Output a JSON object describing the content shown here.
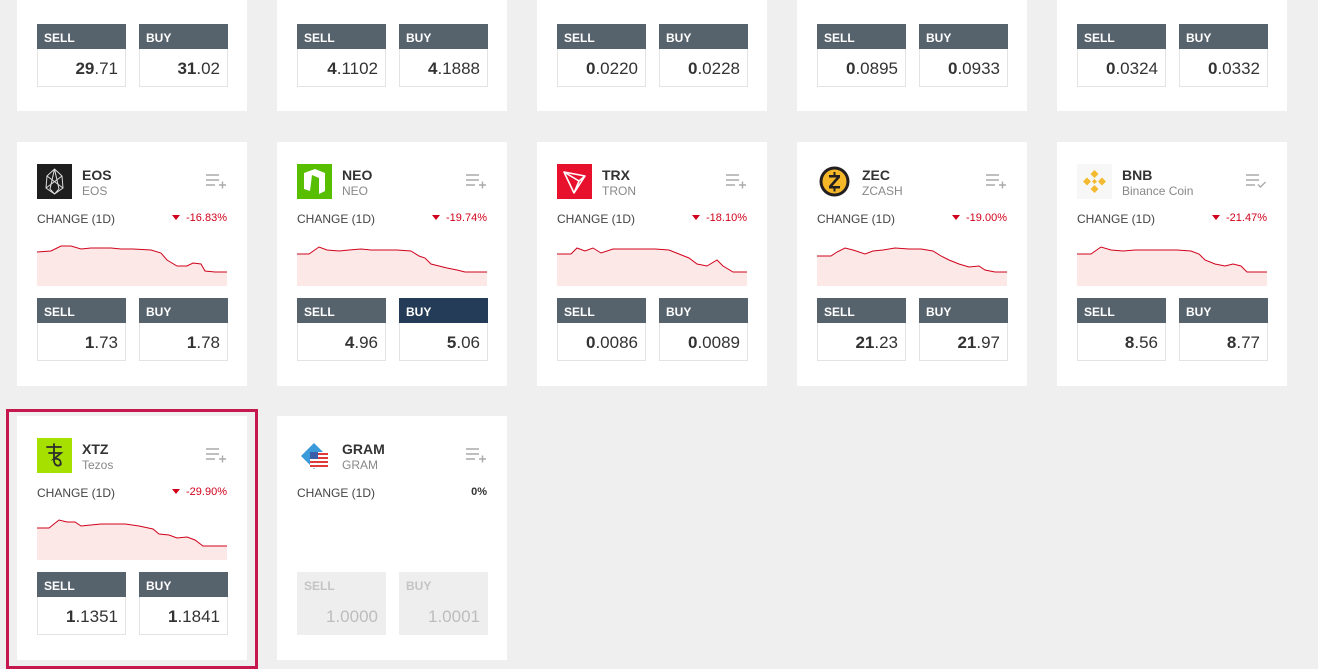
{
  "colors": {
    "down": "#d0021b",
    "button": "#56626c",
    "button_active": "#243c57",
    "highlight": "#c4184f"
  },
  "top_row": [
    {
      "sell": {
        "label": "SELL",
        "int": "29",
        "dec": ".71"
      },
      "buy": {
        "label": "BUY",
        "int": "31",
        "dec": ".02"
      }
    },
    {
      "sell": {
        "label": "SELL",
        "int": "4",
        "dec": ".1102"
      },
      "buy": {
        "label": "BUY",
        "int": "4",
        "dec": ".1888"
      }
    },
    {
      "sell": {
        "label": "SELL",
        "int": "0",
        "dec": ".0220"
      },
      "buy": {
        "label": "BUY",
        "int": "0",
        "dec": ".0228"
      }
    },
    {
      "sell": {
        "label": "SELL",
        "int": "0",
        "dec": ".0895"
      },
      "buy": {
        "label": "BUY",
        "int": "0",
        "dec": ".0933"
      }
    },
    {
      "sell": {
        "label": "SELL",
        "int": "0",
        "dec": ".0324"
      },
      "buy": {
        "label": "BUY",
        "int": "0",
        "dec": ".0332"
      }
    }
  ],
  "cards": [
    {
      "symbol": "EOS",
      "name": "EOS",
      "logo_icon": "eos-icon",
      "change_label": "CHANGE (1D)",
      "change": "-16.83%",
      "sell": {
        "label": "SELL",
        "int": "1",
        "dec": ".73"
      },
      "buy": {
        "label": "BUY",
        "int": "1",
        "dec": ".78"
      }
    },
    {
      "symbol": "NEO",
      "name": "NEO",
      "logo_icon": "neo-icon",
      "change_label": "CHANGE (1D)",
      "change": "-19.74%",
      "sell": {
        "label": "SELL",
        "int": "4",
        "dec": ".96"
      },
      "buy": {
        "label": "BUY",
        "int": "5",
        "dec": ".06"
      }
    },
    {
      "symbol": "TRX",
      "name": "TRON",
      "logo_icon": "tron-icon",
      "change_label": "CHANGE (1D)",
      "change": "-18.10%",
      "sell": {
        "label": "SELL",
        "int": "0",
        "dec": ".0086"
      },
      "buy": {
        "label": "BUY",
        "int": "0",
        "dec": ".0089"
      }
    },
    {
      "symbol": "ZEC",
      "name": "ZCASH",
      "logo_icon": "zcash-icon",
      "change_label": "CHANGE (1D)",
      "change": "-19.00%",
      "sell": {
        "label": "SELL",
        "int": "21",
        "dec": ".23"
      },
      "buy": {
        "label": "BUY",
        "int": "21",
        "dec": ".97"
      }
    },
    {
      "symbol": "BNB",
      "name": "Binance Coin",
      "logo_icon": "binance-icon",
      "change_label": "CHANGE (1D)",
      "change": "-21.47%",
      "sell": {
        "label": "SELL",
        "int": "8",
        "dec": ".56"
      },
      "buy": {
        "label": "BUY",
        "int": "8",
        "dec": ".77"
      }
    },
    {
      "symbol": "XTZ",
      "name": "Tezos",
      "logo_icon": "tezos-icon",
      "change_label": "CHANGE (1D)",
      "change": "-29.90%",
      "sell": {
        "label": "SELL",
        "int": "1",
        "dec": ".1351"
      },
      "buy": {
        "label": "BUY",
        "int": "1",
        "dec": ".1841"
      }
    },
    {
      "symbol": "GRAM",
      "name": "GRAM",
      "logo_icon": "gram-icon",
      "change_label": "CHANGE (1D)",
      "change": "0%",
      "sell": {
        "label": "SELL",
        "int": "1",
        "dec": ".0000"
      },
      "buy": {
        "label": "BUY",
        "int": "1",
        "dec": ".0001"
      }
    }
  ]
}
